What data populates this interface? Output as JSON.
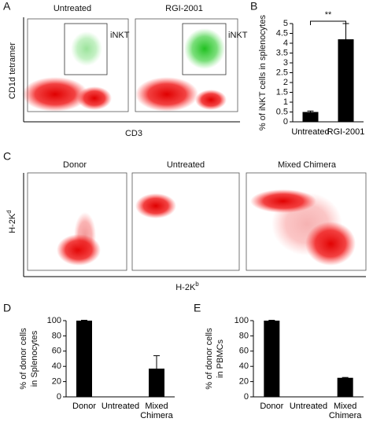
{
  "panel_labels": [
    "A",
    "B",
    "C",
    "D",
    "E"
  ],
  "flow_a": {
    "titles": [
      "Untreated",
      "RGI-2001"
    ],
    "gate_label": "iNKT",
    "ylabel": "CD1d tetramer",
    "xlabel": "CD3"
  },
  "flow_c": {
    "titles": [
      "Donor",
      "Untreated",
      "Mixed Chimera"
    ],
    "ylabel": {
      "text": "H-2K",
      "sup": "d"
    },
    "xlabel": {
      "text": "H-2K",
      "sup": "b"
    }
  },
  "chart_data": [
    {
      "type": "bar",
      "categories": [
        "Untreated",
        "RGI-2001"
      ],
      "values": [
        0.5,
        4.2
      ],
      "errors": [
        0.05,
        0.8
      ],
      "color": "#000000",
      "ylabel": [
        "% of iNKT cells in splenocytes"
      ],
      "ylim": [
        0,
        5
      ],
      "yticks": [
        0,
        0.5,
        1,
        1.5,
        2,
        2.5,
        3,
        3.5,
        4,
        4.5,
        5
      ],
      "annotation": "**"
    },
    {
      "type": "bar",
      "categories": [
        "Donor",
        "Untreated",
        "Mixed Chimera"
      ],
      "values": [
        100,
        0,
        37
      ],
      "errors": [
        0.5,
        0,
        17
      ],
      "color": "#000000",
      "ylabel": [
        "% of donor cells",
        "in Splenocytes"
      ],
      "ylim": [
        0,
        100
      ],
      "yticks": [
        0,
        20,
        40,
        60,
        80,
        100
      ]
    },
    {
      "type": "bar",
      "categories": [
        "Donor",
        "Untreated",
        "Mixed Chimera"
      ],
      "values": [
        100,
        0,
        25
      ],
      "errors": [
        0.5,
        0,
        0.5
      ],
      "color": "#000000",
      "ylabel": [
        "% of donor cells",
        "in PBMCs"
      ],
      "ylim": [
        0,
        100
      ],
      "yticks": [
        0,
        20,
        40,
        60,
        80,
        100
      ]
    }
  ]
}
